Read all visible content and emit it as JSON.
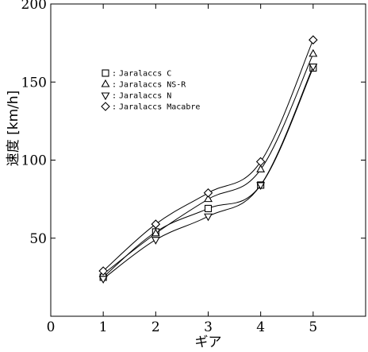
{
  "chart_data": {
    "type": "line",
    "xlabel": "ギア",
    "ylabel": "速度 [km/h]",
    "xlim": [
      0,
      6
    ],
    "ylim": [
      0,
      200
    ],
    "xticks": [
      0,
      1,
      2,
      3,
      4,
      5
    ],
    "yticks": [
      50,
      100,
      150,
      200
    ],
    "x": [
      1,
      2,
      3,
      4,
      5
    ],
    "grid": false,
    "legend_position": "top-left",
    "legend_separator": ":",
    "series": [
      {
        "name": "Jaralaccs C",
        "marker": "square",
        "values": [
          25,
          54,
          69,
          84,
          159
        ]
      },
      {
        "name": "Jaralaccs NS-R",
        "marker": "triangle-up",
        "values": [
          27,
          53,
          75,
          94,
          168
        ]
      },
      {
        "name": "Jaralaccs N",
        "marker": "triangle-down",
        "values": [
          24,
          49,
          64,
          84,
          160
        ]
      },
      {
        "name": "Jaralaccs Macabre",
        "marker": "diamond",
        "values": [
          29,
          59,
          79,
          99,
          177
        ]
      }
    ]
  }
}
